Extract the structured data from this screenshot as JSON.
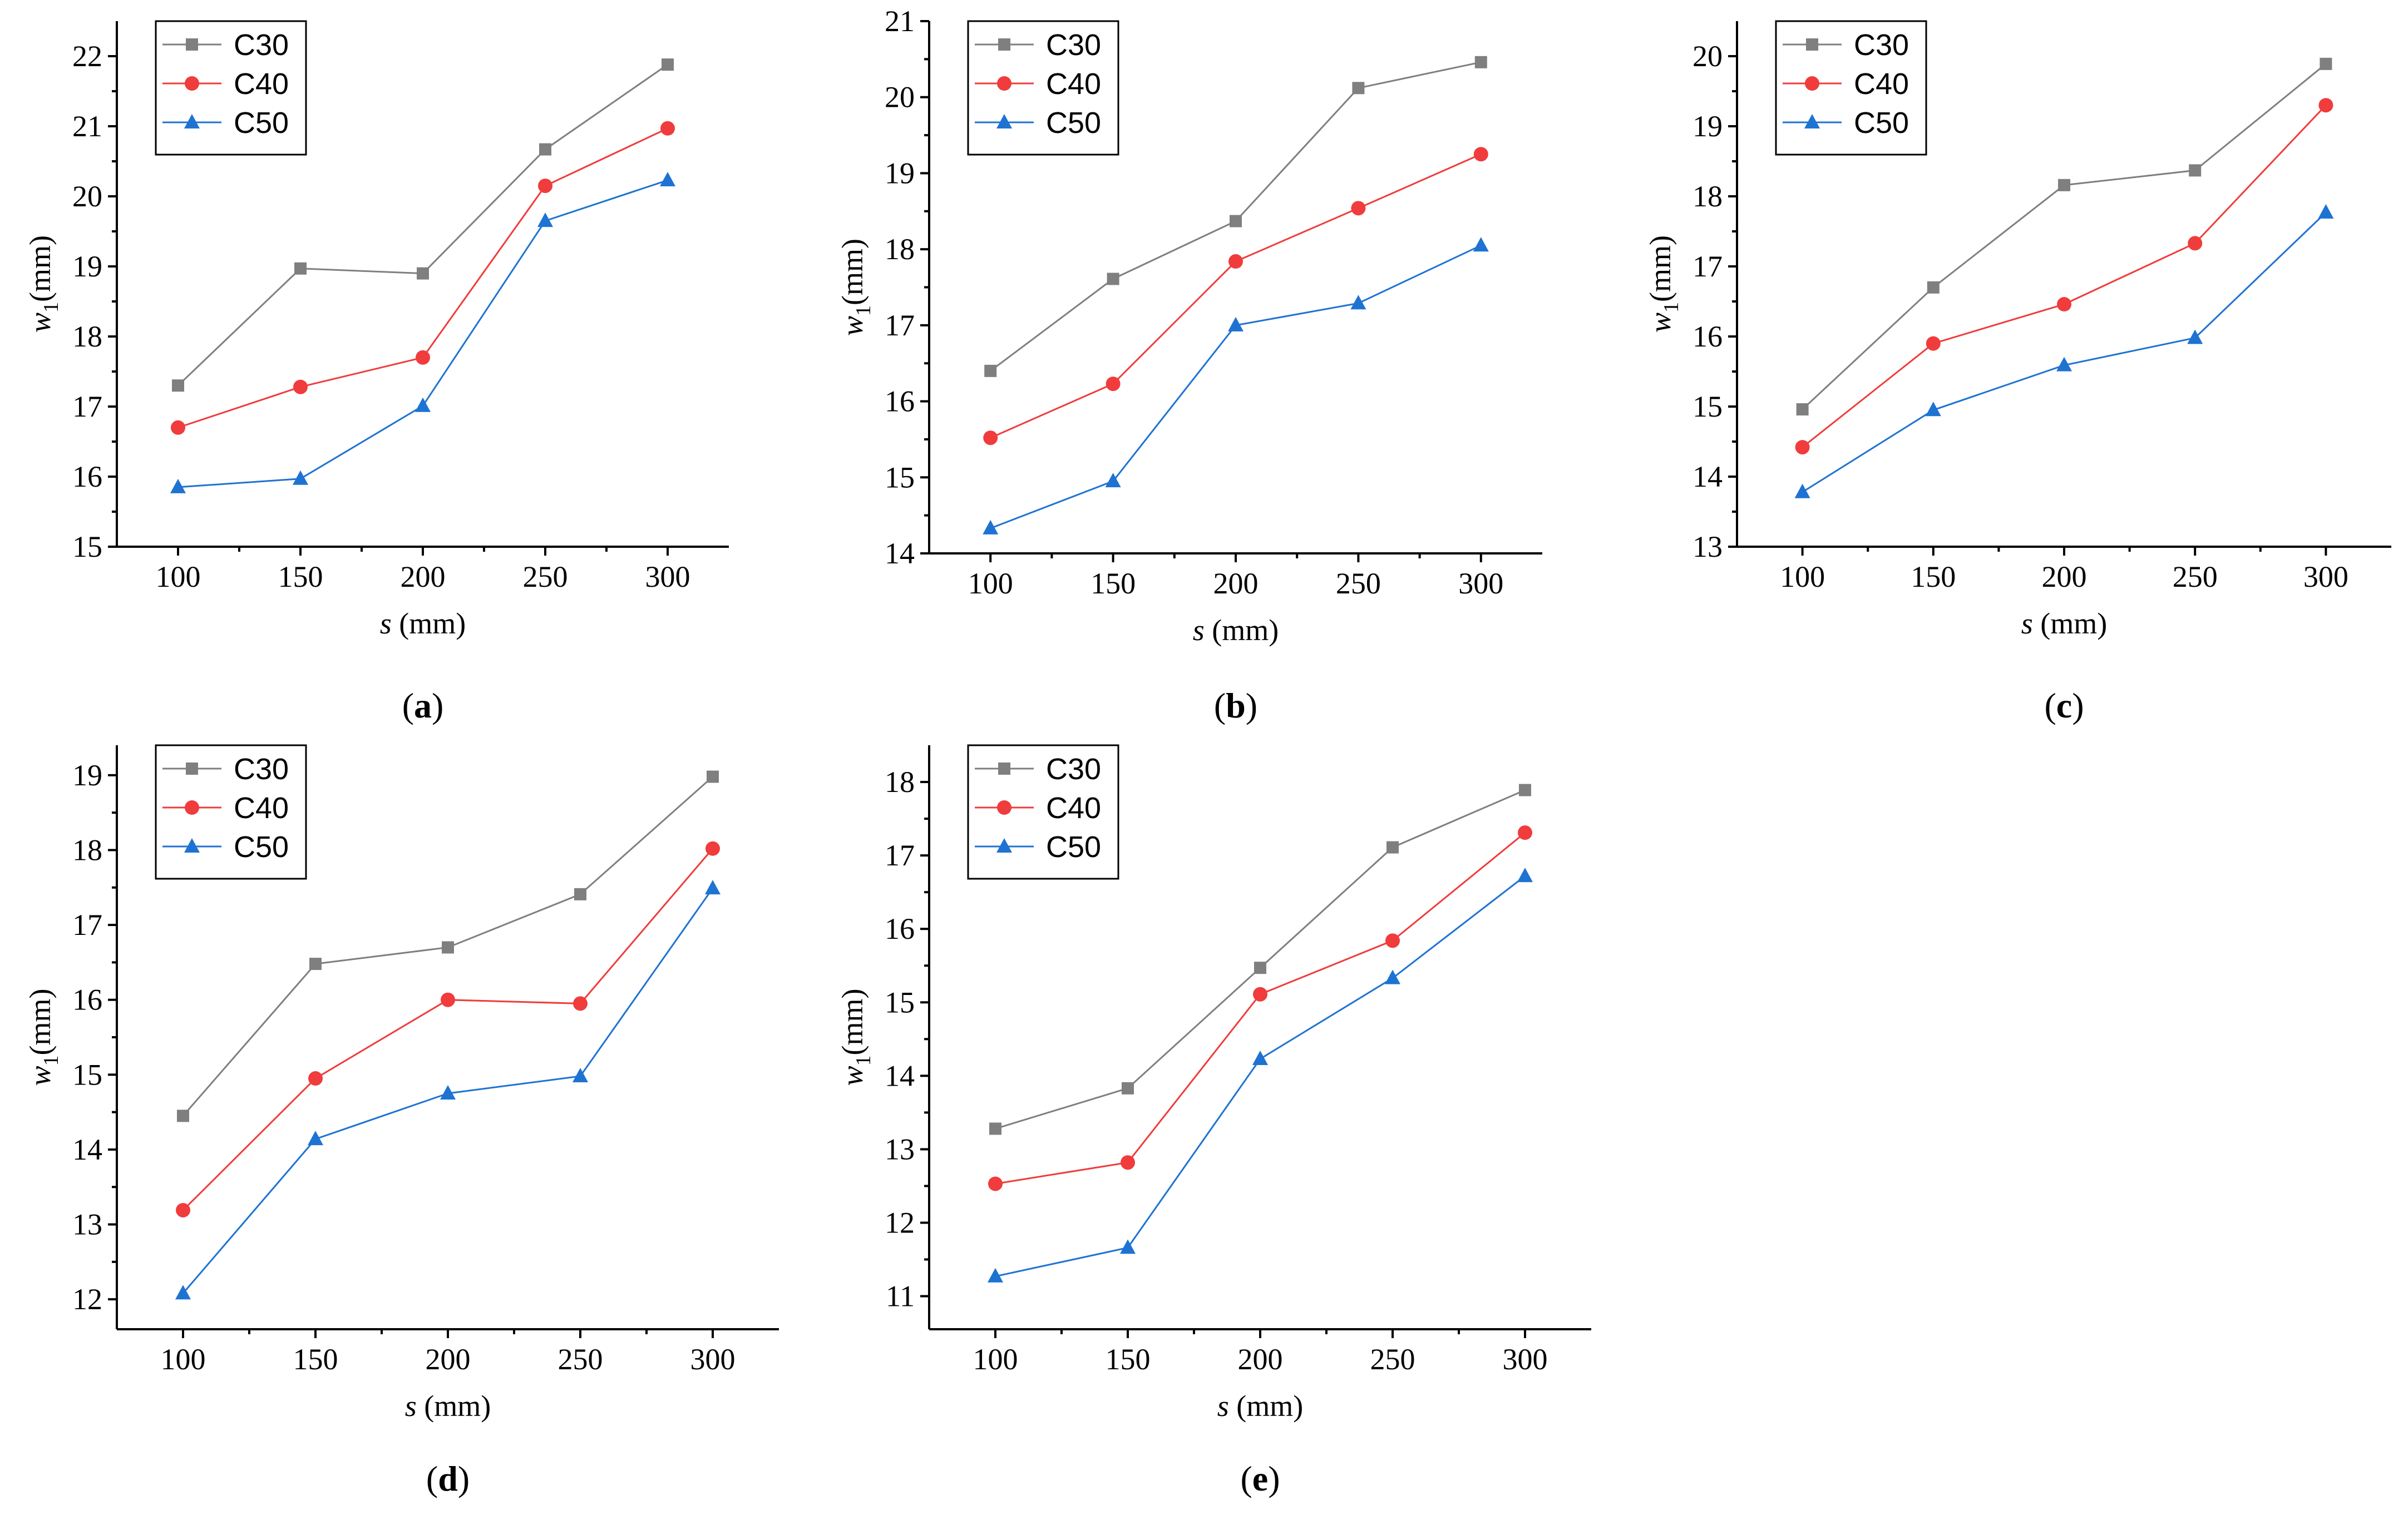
{
  "figure": {
    "background": "#ffffff"
  },
  "series_style": [
    {
      "name": "C30",
      "color": "#7f7f7f",
      "marker": "square"
    },
    {
      "name": "C40",
      "color": "#f03c3c",
      "marker": "circle"
    },
    {
      "name": "C50",
      "color": "#1e73d2",
      "marker": "triangle"
    }
  ],
  "chart_data": [
    {
      "id": "a",
      "panel_label": "a",
      "type": "line",
      "xlabel_var": "s",
      "xlabel_unit": " (mm)",
      "ylabel_var": "w",
      "ylabel_sub": "1",
      "ylabel_unit": "(mm)",
      "x": [
        100,
        150,
        200,
        250,
        300
      ],
      "xlim": [
        75,
        325
      ],
      "ylim": [
        15,
        22.5
      ],
      "yticks": [
        15,
        16,
        17,
        18,
        19,
        20,
        21,
        22
      ],
      "legend_position": "top-left",
      "series": [
        {
          "name": "C30",
          "values": [
            17.3,
            18.97,
            18.9,
            20.67,
            21.88
          ]
        },
        {
          "name": "C40",
          "values": [
            16.7,
            17.28,
            17.7,
            20.15,
            20.97
          ]
        },
        {
          "name": "C50",
          "values": [
            15.85,
            15.97,
            17.01,
            19.65,
            20.23
          ]
        }
      ]
    },
    {
      "id": "b",
      "panel_label": "b",
      "type": "line",
      "xlabel_var": "s",
      "xlabel_unit": " (mm)",
      "ylabel_var": "w",
      "ylabel_sub": "1",
      "ylabel_unit": "(mm)",
      "x": [
        100,
        150,
        200,
        250,
        300
      ],
      "xlim": [
        75,
        325
      ],
      "ylim": [
        14,
        21
      ],
      "yticks": [
        14,
        15,
        16,
        17,
        18,
        19,
        20,
        21
      ],
      "legend_position": "top-left",
      "series": [
        {
          "name": "C30",
          "values": [
            16.4,
            17.61,
            18.37,
            20.12,
            20.46
          ]
        },
        {
          "name": "C40",
          "values": [
            15.52,
            16.23,
            17.84,
            18.54,
            19.25
          ]
        },
        {
          "name": "C50",
          "values": [
            14.33,
            14.95,
            17.0,
            17.29,
            18.05
          ]
        }
      ]
    },
    {
      "id": "c",
      "panel_label": "c",
      "type": "line",
      "xlabel_var": "s",
      "xlabel_unit": " (mm)",
      "ylabel_var": "w",
      "ylabel_sub": "1",
      "ylabel_unit": "(mm)",
      "x": [
        100,
        150,
        200,
        250,
        300
      ],
      "xlim": [
        75,
        325
      ],
      "ylim": [
        13,
        20.5
      ],
      "yticks": [
        13,
        14,
        15,
        16,
        17,
        18,
        19,
        20
      ],
      "legend_position": "top-left",
      "series": [
        {
          "name": "C30",
          "values": [
            14.96,
            16.7,
            18.16,
            18.37,
            19.89
          ]
        },
        {
          "name": "C40",
          "values": [
            14.42,
            15.9,
            16.46,
            17.33,
            19.3
          ]
        },
        {
          "name": "C50",
          "values": [
            13.78,
            14.95,
            15.59,
            15.98,
            17.77
          ]
        }
      ]
    },
    {
      "id": "d",
      "panel_label": "d",
      "type": "line",
      "xlabel_var": "s",
      "xlabel_unit": " (mm)",
      "ylabel_var": "w",
      "ylabel_sub": "1",
      "ylabel_unit": "(mm)",
      "x": [
        100,
        150,
        200,
        250,
        300
      ],
      "xlim": [
        75,
        325
      ],
      "ylim": [
        11.6,
        19.4
      ],
      "yticks": [
        12,
        13,
        14,
        15,
        16,
        17,
        18,
        19
      ],
      "legend_position": "top-left",
      "series": [
        {
          "name": "C30",
          "values": [
            14.45,
            16.48,
            16.7,
            17.41,
            18.98
          ]
        },
        {
          "name": "C40",
          "values": [
            13.19,
            14.95,
            16.0,
            15.95,
            18.02
          ]
        },
        {
          "name": "C50",
          "values": [
            12.08,
            14.14,
            14.75,
            14.98,
            17.49
          ]
        }
      ]
    },
    {
      "id": "e",
      "panel_label": "e",
      "type": "line",
      "xlabel_var": "s",
      "xlabel_unit": " (mm)",
      "ylabel_var": "w",
      "ylabel_sub": "1",
      "ylabel_unit": "(mm)",
      "x": [
        100,
        150,
        200,
        250,
        300
      ],
      "xlim": [
        75,
        325
      ],
      "ylim": [
        10.55,
        18.5
      ],
      "yticks": [
        11,
        12,
        13,
        14,
        15,
        16,
        17,
        18
      ],
      "legend_position": "top-left",
      "series": [
        {
          "name": "C30",
          "values": [
            13.28,
            13.83,
            15.47,
            17.11,
            17.89
          ]
        },
        {
          "name": "C40",
          "values": [
            12.53,
            12.82,
            15.11,
            15.84,
            17.31
          ]
        },
        {
          "name": "C50",
          "values": [
            11.27,
            11.66,
            14.23,
            15.33,
            16.72
          ]
        }
      ]
    }
  ]
}
